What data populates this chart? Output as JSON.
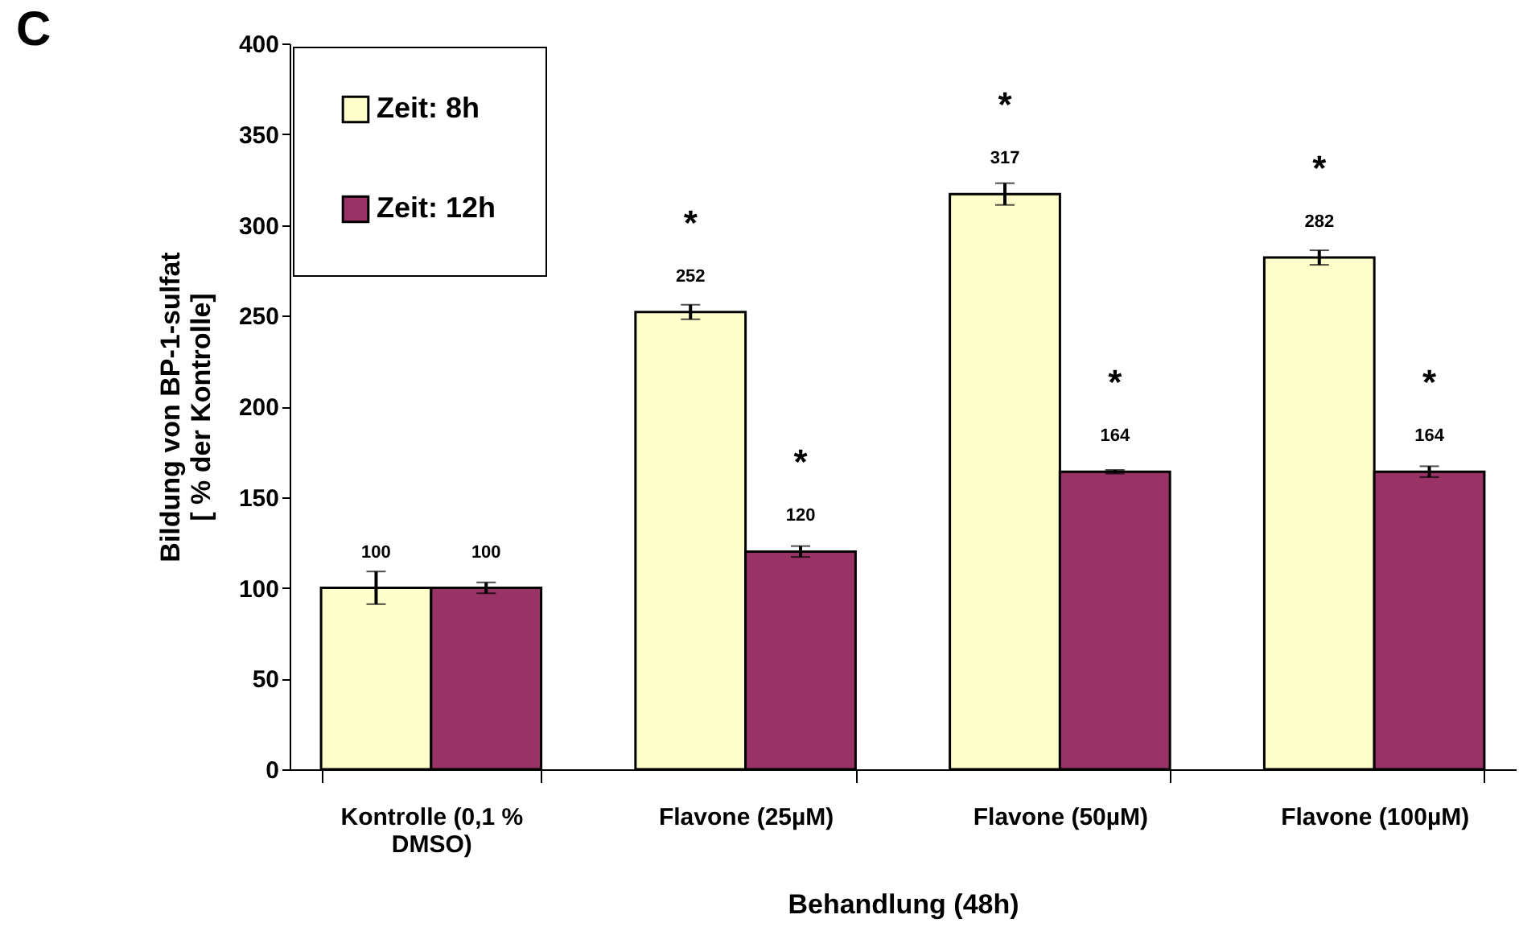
{
  "chart_data": {
    "type": "bar",
    "title": "C",
    "xlabel": "Behandlung (48h)",
    "ylabel": "Bildung von BP-1-sulfat\n[ % der Kontrolle]",
    "categories": [
      "Kontrolle (0,1 % DMSO)",
      "Flavone (25µM)",
      "Flavone (50µM)",
      "Flavone (100µM)"
    ],
    "series": [
      {
        "name": "Zeit: 8h",
        "color": "#ffffcc",
        "values": [
          100,
          252,
          317,
          282
        ],
        "errors": [
          9,
          4,
          6,
          4
        ]
      },
      {
        "name": "Zeit: 12h",
        "color": "#993366",
        "values": [
          100,
          120,
          164,
          164
        ],
        "errors": [
          3,
          3,
          1,
          3
        ]
      }
    ],
    "ylim": [
      0,
      400
    ],
    "yticks": [
      0,
      50,
      100,
      150,
      200,
      250,
      300,
      350,
      400
    ],
    "grid": false,
    "legend": "top left",
    "data_labels": true,
    "annotations": [
      {
        "text": "*",
        "x": "Flavone (25µM)",
        "y": 252
      },
      {
        "text": "*",
        "x": "Flavone (25µM)",
        "y": 120
      },
      {
        "text": "*",
        "x": "Flavone (50µM)",
        "y": 317
      },
      {
        "text": "*",
        "x": "Flavone (50µM)",
        "y": 164
      },
      {
        "text": "*",
        "x": "Flavone (100µM)",
        "y": 282
      },
      {
        "text": "*",
        "x": "Flavone (100µM)",
        "y": 164
      }
    ]
  }
}
